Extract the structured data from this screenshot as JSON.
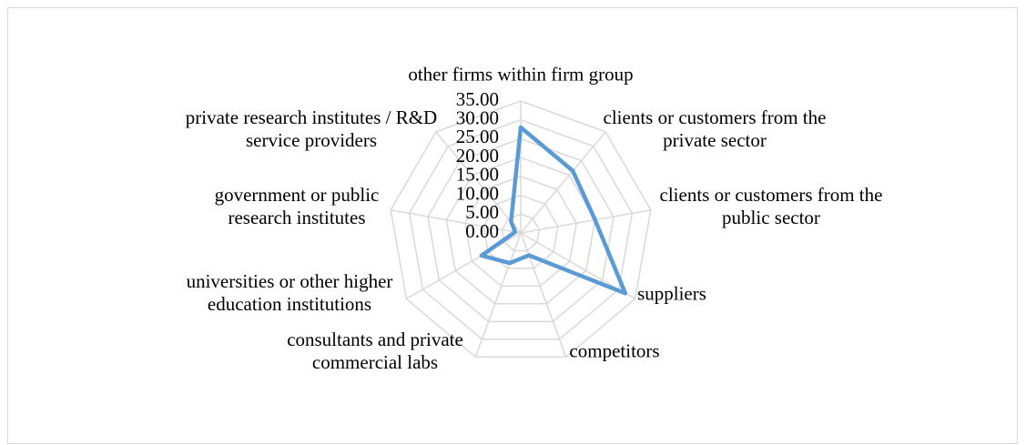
{
  "chart_data": {
    "type": "radar",
    "categories": [
      "other firms within firm group",
      "clients or customers from the private sector",
      "clients or customers from the public sector",
      "suppliers",
      "competitors",
      "consultants and private commercial labs",
      "universities or other higher education institutions",
      "government or public research institutes",
      "private research institutes / R&D service providers"
    ],
    "series": [
      {
        "color": "#5b9bd5",
        "values": [
          28,
          21.5,
          20,
          32,
          6.3,
          8.5,
          12,
          1.5,
          4
        ]
      }
    ],
    "ylim": [
      0,
      35
    ],
    "yticks": [
      {
        "value": 0,
        "label": "0.00"
      },
      {
        "value": 5,
        "label": "5.00"
      },
      {
        "value": 10,
        "label": "10.00"
      },
      {
        "value": 15,
        "label": "15.00"
      },
      {
        "value": 20,
        "label": "20.00"
      },
      {
        "value": 25,
        "label": "25.00"
      },
      {
        "value": 30,
        "label": "30.00"
      },
      {
        "value": 35,
        "label": "35.00"
      }
    ],
    "grid": true
  }
}
